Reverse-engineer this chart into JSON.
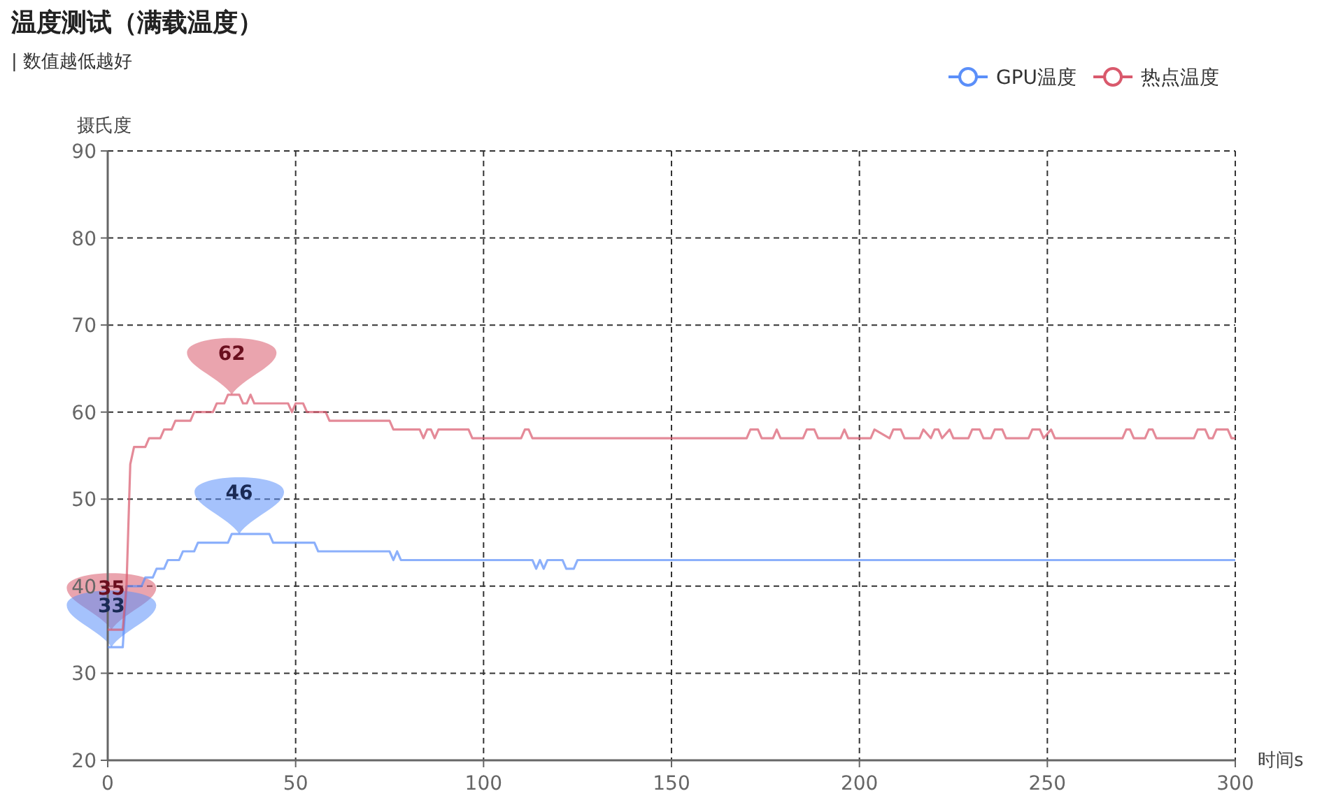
{
  "chart_data": {
    "type": "line",
    "title": "温度测试（满载温度）",
    "subtitle": "| 数值越低越好",
    "xlabel": "时间s",
    "ylabel": "摄氏度",
    "xlim": [
      0,
      300
    ],
    "xticks": [
      0,
      50,
      100,
      150,
      200,
      250,
      300
    ],
    "ylim": [
      20,
      90
    ],
    "yticks": [
      20,
      30,
      40,
      50,
      60,
      70,
      80,
      90
    ],
    "grid": true,
    "legend": "top right",
    "series": [
      {
        "name": "GPU温度",
        "color": "#5b8ff9",
        "x": [
          0,
          4,
          5,
          6,
          9,
          10,
          12,
          13,
          15,
          16,
          19,
          20,
          23,
          24,
          32,
          33,
          43,
          44,
          55,
          56,
          75,
          76,
          77,
          78,
          113,
          114,
          115,
          116,
          117,
          118,
          121,
          122,
          124,
          125,
          300
        ],
        "values": [
          33,
          33,
          40,
          40,
          40,
          41,
          41,
          42,
          42,
          43,
          43,
          44,
          44,
          45,
          45,
          46,
          46,
          45,
          45,
          44,
          44,
          43,
          44,
          43,
          43,
          42,
          43,
          42,
          43,
          43,
          43,
          42,
          42,
          43,
          43
        ]
      },
      {
        "name": "热点温度",
        "color": "#d9596c",
        "x": [
          0,
          4,
          5,
          6,
          7,
          10,
          11,
          14,
          15,
          17,
          18,
          22,
          23,
          28,
          29,
          31,
          32,
          35,
          36,
          37,
          38,
          39,
          48,
          49,
          50,
          52,
          53,
          58,
          59,
          75,
          76,
          83,
          84,
          85,
          86,
          87,
          88,
          96,
          97,
          110,
          111,
          112,
          113,
          170,
          171,
          173,
          174,
          177,
          178,
          179,
          185,
          186,
          188,
          189,
          195,
          196,
          197,
          203,
          204,
          208,
          209,
          211,
          212,
          216,
          217,
          219,
          220,
          221,
          222,
          224,
          225,
          229,
          230,
          232,
          233,
          235,
          236,
          238,
          239,
          245,
          246,
          248,
          249,
          251,
          252,
          270,
          271,
          272,
          273,
          276,
          277,
          278,
          279,
          289,
          290,
          292,
          293,
          294,
          295,
          298,
          299,
          300
        ],
        "values": [
          35,
          35,
          40,
          54,
          56,
          56,
          57,
          57,
          58,
          58,
          59,
          59,
          60,
          60,
          61,
          61,
          62,
          62,
          61,
          61,
          62,
          61,
          61,
          60,
          61,
          61,
          60,
          60,
          59,
          59,
          58,
          58,
          57,
          58,
          58,
          57,
          58,
          58,
          57,
          57,
          58,
          58,
          57,
          57,
          58,
          58,
          57,
          57,
          58,
          57,
          57,
          58,
          58,
          57,
          57,
          58,
          57,
          57,
          58,
          57,
          58,
          58,
          57,
          57,
          58,
          57,
          58,
          58,
          57,
          58,
          57,
          57,
          58,
          58,
          57,
          57,
          58,
          58,
          57,
          57,
          58,
          58,
          57,
          58,
          57,
          57,
          58,
          58,
          57,
          57,
          58,
          58,
          57,
          57,
          58,
          58,
          57,
          57,
          58,
          58,
          57,
          57
        ]
      }
    ],
    "annotations": [
      {
        "text": "62",
        "x": 33,
        "y": 62
      },
      {
        "text": "46",
        "x": 35,
        "y": 46
      },
      {
        "text": "35",
        "x": 1,
        "y": 35
      },
      {
        "text": "33",
        "x": 1,
        "y": 33
      }
    ]
  }
}
